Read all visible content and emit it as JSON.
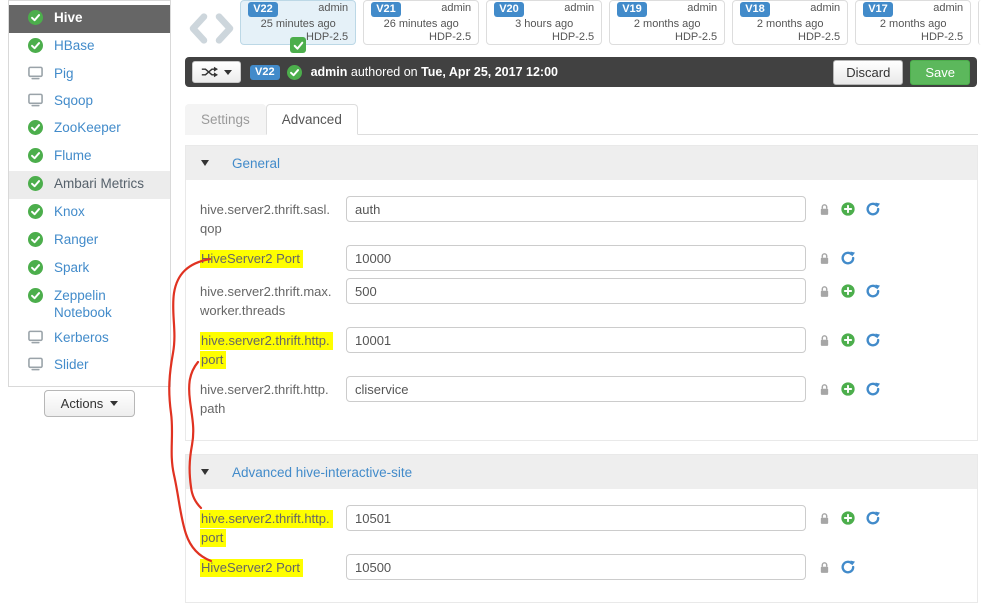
{
  "colors": {
    "link_blue": "#428bca",
    "success_green": "#5cb85c",
    "toolbar_bg": "#414141",
    "selected_service_bg": "#666666",
    "selected_version_bg": "#e5f1f8",
    "highlight_yellow": "#ffff00",
    "annotation_red": "#e03221"
  },
  "sidebar": {
    "items": [
      {
        "label": "Hive",
        "icon": "check",
        "state": "selected"
      },
      {
        "label": "HBase",
        "icon": "check",
        "state": "normal"
      },
      {
        "label": "Pig",
        "icon": "client",
        "state": "normal"
      },
      {
        "label": "Sqoop",
        "icon": "client",
        "state": "normal"
      },
      {
        "label": "ZooKeeper",
        "icon": "check",
        "state": "normal"
      },
      {
        "label": "Flume",
        "icon": "check",
        "state": "normal"
      },
      {
        "label": "Ambari Metrics",
        "icon": "check",
        "state": "hover"
      },
      {
        "label": "Knox",
        "icon": "check",
        "state": "normal"
      },
      {
        "label": "Ranger",
        "icon": "check",
        "state": "normal"
      },
      {
        "label": "Spark",
        "icon": "check",
        "state": "normal"
      },
      {
        "label": "Zeppelin Notebook",
        "icon": "check",
        "state": "normal"
      },
      {
        "label": "Kerberos",
        "icon": "client",
        "state": "normal"
      },
      {
        "label": "Slider",
        "icon": "client",
        "state": "normal"
      }
    ],
    "actions_label": "Actions"
  },
  "versions": {
    "cards": [
      {
        "id": "V22",
        "user": "admin",
        "age": "25 minutes ago",
        "stack": "HDP-2.5",
        "selected": true,
        "current": true
      },
      {
        "id": "V21",
        "user": "admin",
        "age": "26 minutes ago",
        "stack": "HDP-2.5",
        "selected": false,
        "current": false
      },
      {
        "id": "V20",
        "user": "admin",
        "age": "3 hours ago",
        "stack": "HDP-2.5",
        "selected": false,
        "current": false
      },
      {
        "id": "V19",
        "user": "admin",
        "age": "2 months ago",
        "stack": "HDP-2.5",
        "selected": false,
        "current": false
      },
      {
        "id": "V18",
        "user": "admin",
        "age": "2 months ago",
        "stack": "HDP-2.5",
        "selected": false,
        "current": false
      },
      {
        "id": "V17",
        "user": "admin",
        "age": "2 months ago",
        "stack": "HDP-2.5",
        "selected": false,
        "current": false
      }
    ]
  },
  "toolbar": {
    "version_badge": "V22",
    "author": "admin",
    "authored_text": "authored on",
    "authored_date": "Tue, Apr 25, 2017 12:00",
    "discard_label": "Discard",
    "save_label": "Save"
  },
  "tabs": [
    {
      "label": "Settings",
      "active": false
    },
    {
      "label": "Advanced",
      "active": true
    }
  ],
  "sections": [
    {
      "title": "General",
      "rows": [
        {
          "label": "hive.server2.thrift.sasl.qop",
          "value": "auth",
          "highlight": false,
          "icons": [
            "lock",
            "override",
            "undo"
          ]
        },
        {
          "label": "HiveServer2 Port",
          "value": "10000",
          "highlight": true,
          "icons": [
            "lock",
            "undo"
          ]
        },
        {
          "label": "hive.server2.thrift.max.worker.threads",
          "value": "500",
          "highlight": false,
          "icons": [
            "lock",
            "override",
            "undo"
          ]
        },
        {
          "label": "hive.server2.thrift.http.port",
          "value": "10001",
          "highlight": true,
          "icons": [
            "lock",
            "override",
            "undo"
          ]
        },
        {
          "label": "hive.server2.thrift.http.path",
          "value": "cliservice",
          "highlight": false,
          "icons": [
            "lock",
            "override",
            "undo"
          ]
        }
      ]
    },
    {
      "title": "Advanced hive-interactive-site",
      "rows": [
        {
          "label": "hive.server2.thrift.http.port",
          "value": "10501",
          "highlight": true,
          "icons": [
            "lock",
            "override",
            "undo"
          ]
        },
        {
          "label": "HiveServer2 Port",
          "value": "10500",
          "highlight": true,
          "icons": [
            "lock",
            "undo"
          ]
        }
      ]
    }
  ]
}
